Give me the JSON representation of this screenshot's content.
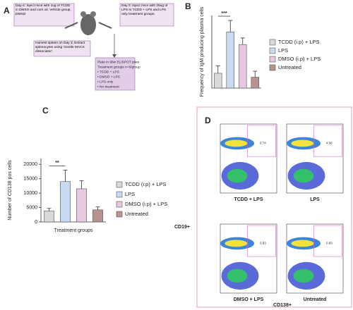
{
  "panel_labels": [
    "A",
    "B",
    "C",
    "D"
  ],
  "diagram": {
    "step1": "Day-4: Inject mice with 1ug of TCDD in DMSO and corn oil. Vehicle group, DMSO",
    "step2": "Day 0: Inject mice with 25ug of LPS to TCDD + LPS and LPS only treatment groups.",
    "step3": "Harvest spleen on Day 3; Extract splenocytes using 'Gentle MACS dissociator'.",
    "step4": [
      "Plate in 96w ELISPOT plate",
      "Treatment groups n=6/group",
      "• TCDD + LPS",
      "• DMSO + LPS",
      "• LPS only",
      "• No treatment"
    ]
  },
  "chart_data": [
    {
      "type": "bar",
      "ylabel": "Frequency of IgM producing plasma cells",
      "categories": [
        "TCDD (i.p) + LPS",
        "LPS",
        "DMSO (i.p) + LPS",
        "Untreated"
      ],
      "values": [
        45,
        170,
        132,
        33
      ],
      "errors": [
        22,
        35,
        20,
        18
      ],
      "colors": [
        "#d9d9d9",
        "#c9d9f2",
        "#e6c8e0",
        "#b8928f"
      ],
      "ylim": [
        0,
        220
      ],
      "significance": "***"
    },
    {
      "type": "bar",
      "ylabel": "Number of CD138 pos cells",
      "xlabel": "Treatment groups",
      "categories": [
        "TCDD (i.p) + LPS",
        "LPS",
        "DMSO (i.p) + LPS",
        "Untreated"
      ],
      "values": [
        3800,
        14000,
        11500,
        4200
      ],
      "errors": [
        900,
        4000,
        2800,
        1000
      ],
      "colors": [
        "#d9d9d9",
        "#c9d9f2",
        "#e6c8e0",
        "#b8928f"
      ],
      "ylim": [
        0,
        22000
      ],
      "yticks": [
        0,
        5000,
        10000,
        15000,
        20000
      ],
      "significance": "**"
    }
  ],
  "flow": {
    "y_axis": "CD19+",
    "x_axis": "CD138+",
    "plots": [
      {
        "label": "TCDD + LPS",
        "gate": "0.74"
      },
      {
        "label": "LPS",
        "gate": "4.56"
      },
      {
        "label": "DMSO + LPS",
        "gate": "0.83"
      },
      {
        "label": "Untreated",
        "gate": "0.93"
      }
    ]
  }
}
